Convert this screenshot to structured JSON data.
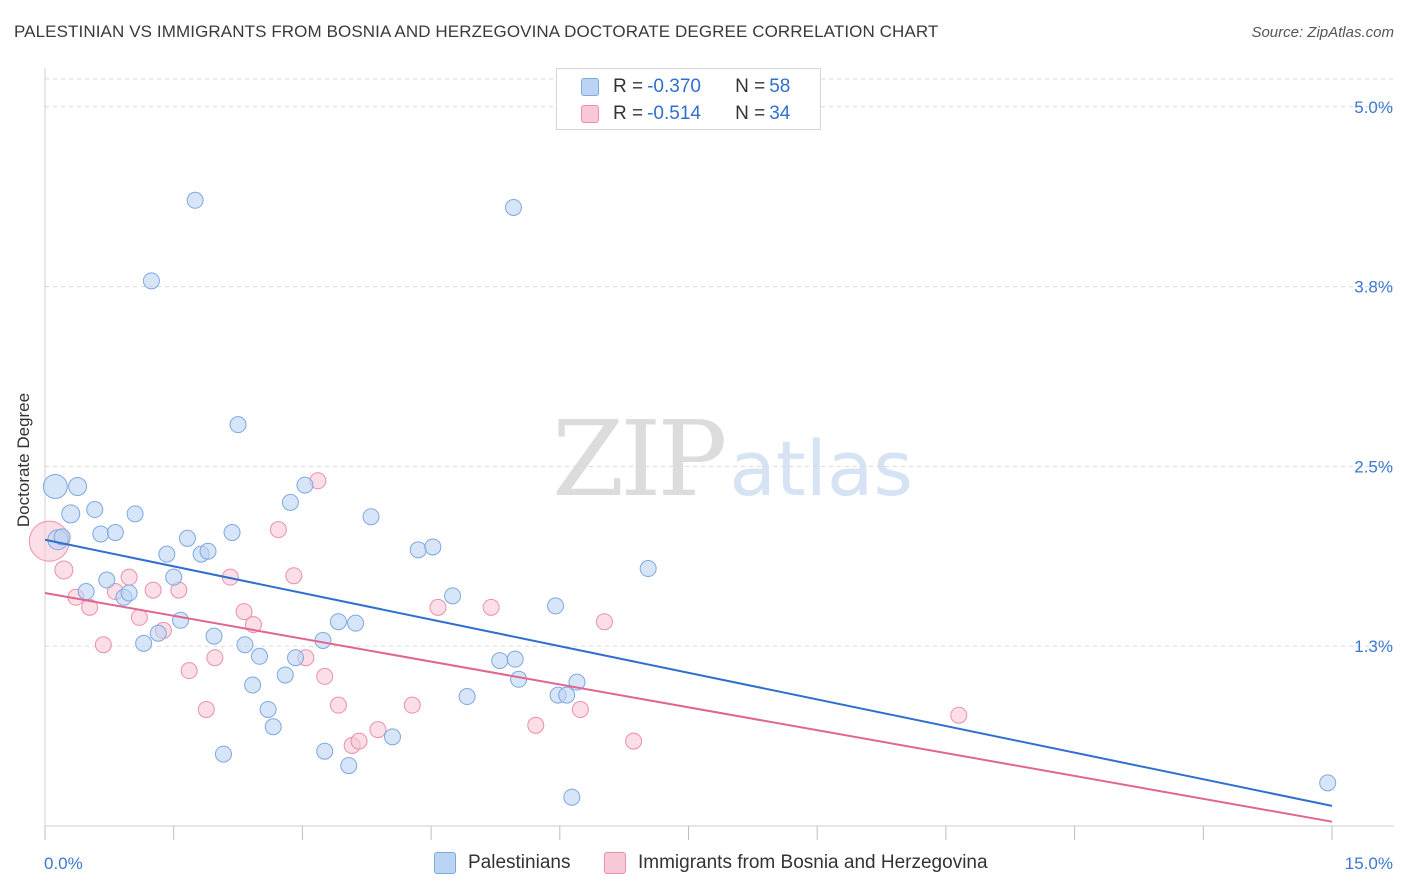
{
  "title": "PALESTINIAN VS IMMIGRANTS FROM BOSNIA AND HERZEGOVINA DOCTORATE DEGREE CORRELATION CHART",
  "source": "Source: ZipAtlas.com",
  "watermark": {
    "zip": "ZIP",
    "atlas": "atlas"
  },
  "legend": {
    "rows": [
      {
        "r_label": "R = ",
        "r_value": "-0.370",
        "n_label": "N = ",
        "n_value": "58"
      },
      {
        "r_label": "R = ",
        "r_value": "-0.514",
        "n_label": "N = ",
        "n_value": "34"
      }
    ]
  },
  "colors": {
    "blue_fill": "#bcd4f4",
    "blue_stroke": "#7ea8e0",
    "blue_line": "#2f6fce",
    "pink_fill": "#f9c8d6",
    "pink_stroke": "#ec8fae",
    "pink_line": "#e0668f",
    "tick_label": "#3b78d0",
    "grid": "#d9d9d9"
  },
  "chart_data": {
    "type": "scatter",
    "title": "PALESTINIAN VS IMMIGRANTS FROM BOSNIA AND HERZEGOVINA DOCTORATE DEGREE CORRELATION CHART",
    "xlabel": "",
    "ylabel": "Doctorate Degree",
    "xlim": [
      0,
      15
    ],
    "ylim": [
      0,
      5.2
    ],
    "x_tick_labels": [
      "0.0%",
      "15.0%"
    ],
    "y_ticks": [
      {
        "value": 1.25,
        "label": "1.3%"
      },
      {
        "value": 2.5,
        "label": "2.5%"
      },
      {
        "value": 3.75,
        "label": "3.8%"
      },
      {
        "value": 5.0,
        "label": "5.0%"
      }
    ],
    "grid": true,
    "series": [
      {
        "name": "Palestinians",
        "color": "blue",
        "trend": {
          "x": [
            0.0,
            15.0
          ],
          "y": [
            1.99,
            0.14
          ]
        },
        "points": [
          {
            "x": 0.12,
            "y": 2.36,
            "s": 12
          },
          {
            "x": 0.15,
            "y": 1.99,
            "s": 10
          },
          {
            "x": 0.2,
            "y": 2.01,
            "s": 8
          },
          {
            "x": 0.3,
            "y": 2.17,
            "s": 9
          },
          {
            "x": 0.38,
            "y": 2.36,
            "s": 9
          },
          {
            "x": 0.48,
            "y": 1.63,
            "s": 8
          },
          {
            "x": 0.58,
            "y": 2.2,
            "s": 8
          },
          {
            "x": 0.65,
            "y": 2.03,
            "s": 8
          },
          {
            "x": 0.72,
            "y": 1.71,
            "s": 8
          },
          {
            "x": 0.82,
            "y": 2.04,
            "s": 8
          },
          {
            "x": 0.92,
            "y": 1.59,
            "s": 8
          },
          {
            "x": 0.98,
            "y": 1.62,
            "s": 8
          },
          {
            "x": 1.05,
            "y": 2.17,
            "s": 8
          },
          {
            "x": 1.15,
            "y": 1.27,
            "s": 8
          },
          {
            "x": 1.24,
            "y": 3.79,
            "s": 8
          },
          {
            "x": 1.32,
            "y": 1.34,
            "s": 8
          },
          {
            "x": 1.42,
            "y": 1.89,
            "s": 8
          },
          {
            "x": 1.5,
            "y": 1.73,
            "s": 8
          },
          {
            "x": 1.58,
            "y": 1.43,
            "s": 8
          },
          {
            "x": 1.66,
            "y": 2.0,
            "s": 8
          },
          {
            "x": 1.75,
            "y": 4.35,
            "s": 8
          },
          {
            "x": 1.82,
            "y": 1.89,
            "s": 8
          },
          {
            "x": 1.9,
            "y": 1.91,
            "s": 8
          },
          {
            "x": 1.97,
            "y": 1.32,
            "s": 8
          },
          {
            "x": 2.08,
            "y": 0.5,
            "s": 8
          },
          {
            "x": 2.18,
            "y": 2.04,
            "s": 8
          },
          {
            "x": 2.25,
            "y": 2.79,
            "s": 8
          },
          {
            "x": 2.33,
            "y": 1.26,
            "s": 8
          },
          {
            "x": 2.42,
            "y": 0.98,
            "s": 8
          },
          {
            "x": 2.5,
            "y": 1.18,
            "s": 8
          },
          {
            "x": 2.6,
            "y": 0.81,
            "s": 8
          },
          {
            "x": 2.66,
            "y": 0.69,
            "s": 8
          },
          {
            "x": 2.8,
            "y": 1.05,
            "s": 8
          },
          {
            "x": 2.86,
            "y": 2.25,
            "s": 8
          },
          {
            "x": 2.92,
            "y": 1.17,
            "s": 8
          },
          {
            "x": 3.03,
            "y": 2.37,
            "s": 8
          },
          {
            "x": 3.24,
            "y": 1.29,
            "s": 8
          },
          {
            "x": 3.26,
            "y": 0.52,
            "s": 8
          },
          {
            "x": 3.42,
            "y": 1.42,
            "s": 8
          },
          {
            "x": 3.54,
            "y": 0.42,
            "s": 8
          },
          {
            "x": 3.62,
            "y": 1.41,
            "s": 8
          },
          {
            "x": 3.8,
            "y": 2.15,
            "s": 8
          },
          {
            "x": 4.05,
            "y": 0.62,
            "s": 8
          },
          {
            "x": 4.35,
            "y": 1.92,
            "s": 8
          },
          {
            "x": 4.52,
            "y": 1.94,
            "s": 8
          },
          {
            "x": 4.75,
            "y": 1.6,
            "s": 8
          },
          {
            "x": 4.92,
            "y": 0.9,
            "s": 8
          },
          {
            "x": 5.3,
            "y": 1.15,
            "s": 8
          },
          {
            "x": 5.46,
            "y": 4.3,
            "s": 8
          },
          {
            "x": 5.48,
            "y": 1.16,
            "s": 8
          },
          {
            "x": 5.52,
            "y": 1.02,
            "s": 8
          },
          {
            "x": 5.98,
            "y": 0.91,
            "s": 8
          },
          {
            "x": 6.08,
            "y": 0.91,
            "s": 8
          },
          {
            "x": 6.14,
            "y": 0.2,
            "s": 8
          },
          {
            "x": 7.03,
            "y": 1.79,
            "s": 8
          },
          {
            "x": 14.95,
            "y": 0.3,
            "s": 8
          },
          {
            "x": 6.2,
            "y": 1.0,
            "s": 8
          },
          {
            "x": 5.95,
            "y": 1.53,
            "s": 8
          }
        ]
      },
      {
        "name": "Immigrants from Bosnia and Herzegovina",
        "color": "pink",
        "trend": {
          "x": [
            0.0,
            15.0
          ],
          "y": [
            1.62,
            0.03
          ]
        },
        "points": [
          {
            "x": 0.05,
            "y": 1.98,
            "s": 20
          },
          {
            "x": 0.22,
            "y": 1.78,
            "s": 9
          },
          {
            "x": 0.36,
            "y": 1.59,
            "s": 8
          },
          {
            "x": 0.52,
            "y": 1.52,
            "s": 8
          },
          {
            "x": 0.68,
            "y": 1.26,
            "s": 8
          },
          {
            "x": 0.82,
            "y": 1.63,
            "s": 8
          },
          {
            "x": 0.98,
            "y": 1.73,
            "s": 8
          },
          {
            "x": 1.1,
            "y": 1.45,
            "s": 8
          },
          {
            "x": 1.26,
            "y": 1.64,
            "s": 8
          },
          {
            "x": 1.38,
            "y": 1.36,
            "s": 8
          },
          {
            "x": 1.56,
            "y": 1.64,
            "s": 8
          },
          {
            "x": 1.68,
            "y": 1.08,
            "s": 8
          },
          {
            "x": 1.88,
            "y": 0.81,
            "s": 8
          },
          {
            "x": 1.98,
            "y": 1.17,
            "s": 8
          },
          {
            "x": 2.16,
            "y": 1.73,
            "s": 8
          },
          {
            "x": 2.32,
            "y": 1.49,
            "s": 8
          },
          {
            "x": 2.43,
            "y": 1.4,
            "s": 8
          },
          {
            "x": 2.72,
            "y": 2.06,
            "s": 8
          },
          {
            "x": 2.9,
            "y": 1.74,
            "s": 8
          },
          {
            "x": 3.04,
            "y": 1.17,
            "s": 8
          },
          {
            "x": 3.18,
            "y": 2.4,
            "s": 8
          },
          {
            "x": 3.26,
            "y": 1.04,
            "s": 8
          },
          {
            "x": 3.42,
            "y": 0.84,
            "s": 8
          },
          {
            "x": 3.58,
            "y": 0.56,
            "s": 8
          },
          {
            "x": 3.66,
            "y": 0.59,
            "s": 8
          },
          {
            "x": 3.88,
            "y": 0.67,
            "s": 8
          },
          {
            "x": 4.28,
            "y": 0.84,
            "s": 8
          },
          {
            "x": 4.58,
            "y": 1.52,
            "s": 8
          },
          {
            "x": 5.2,
            "y": 1.52,
            "s": 8
          },
          {
            "x": 5.72,
            "y": 0.7,
            "s": 8
          },
          {
            "x": 6.24,
            "y": 0.81,
            "s": 8
          },
          {
            "x": 6.52,
            "y": 1.42,
            "s": 8
          },
          {
            "x": 6.86,
            "y": 0.59,
            "s": 8
          },
          {
            "x": 10.65,
            "y": 0.77,
            "s": 8
          }
        ]
      }
    ]
  },
  "bottom_legend": [
    {
      "label": "Palestinians"
    },
    {
      "label": "Immigrants from Bosnia and Herzegovina"
    }
  ]
}
